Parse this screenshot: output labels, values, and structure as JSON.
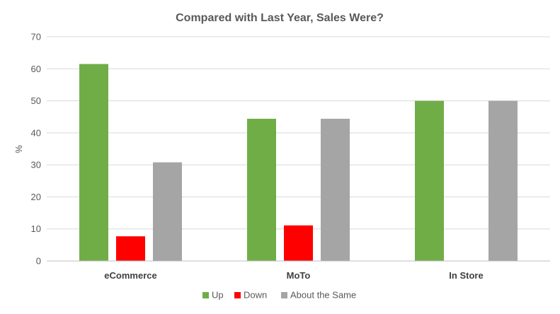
{
  "chart_data": {
    "type": "bar",
    "title": "Compared with Last Year, Sales Were?",
    "xlabel": "",
    "ylabel": "%",
    "ylim": [
      0,
      70
    ],
    "yticks": [
      "0",
      "10",
      "20",
      "30",
      "40",
      "50",
      "60",
      "70"
    ],
    "grid": true,
    "legend_position": "bottom",
    "categories": [
      "eCommerce",
      "MoTo",
      "In Store"
    ],
    "series": [
      {
        "name": "Up",
        "color": "#70ad47",
        "values": [
          61.5,
          44.4,
          50
        ]
      },
      {
        "name": "Down",
        "color": "#ff0000",
        "values": [
          7.7,
          11.1,
          0
        ]
      },
      {
        "name": "About the Same",
        "color": "#a5a5a5",
        "values": [
          30.8,
          44.4,
          50
        ]
      }
    ]
  }
}
